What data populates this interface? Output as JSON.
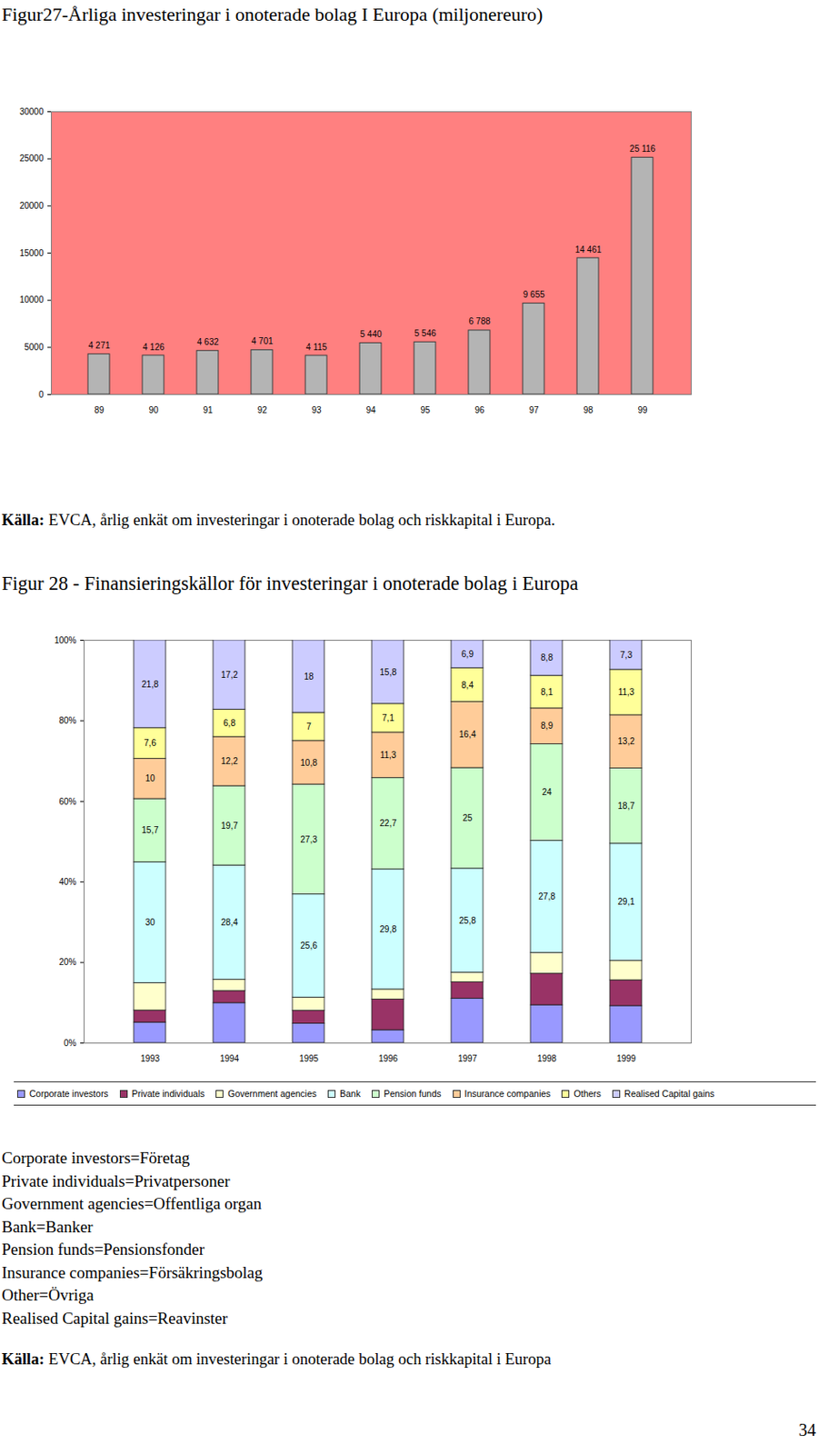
{
  "chart_data": [
    {
      "type": "bar",
      "title": "Figur27-Årliga investeringar i onoterade bolag I Europa (miljonereuro)",
      "categories": [
        "89",
        "90",
        "91",
        "92",
        "93",
        "94",
        "95",
        "96",
        "97",
        "98",
        "99"
      ],
      "values": [
        4271,
        4126,
        4632,
        4701,
        4115,
        5440,
        5546,
        6788,
        9655,
        14461,
        25116
      ],
      "value_labels": [
        "4 271",
        "4 126",
        "4 632",
        "4 701",
        "4 115",
        "5 440",
        "5 546",
        "6 788",
        "9 655",
        "14 461",
        "25 116"
      ],
      "data_labels": true,
      "color": "#b4b4b4",
      "ylim": [
        0,
        30000
      ],
      "yticks": [
        0,
        5000,
        10000,
        15000,
        20000,
        25000,
        30000
      ],
      "grid": false
    },
    {
      "type": "bar",
      "title": "Figur 28 - Finansieringskällor för investeringar i onoterade bolag i Europa",
      "stacked": true,
      "categories": [
        "1993",
        "1994",
        "1995",
        "1996",
        "1997",
        "1998",
        "1999"
      ],
      "ylim": [
        0,
        100
      ],
      "yticks": [
        {
          "value": 0,
          "label": "0%"
        },
        {
          "value": 20,
          "label": "20%"
        },
        {
          "value": 40,
          "label": "40%"
        },
        {
          "value": 60,
          "label": "60%"
        },
        {
          "value": 80,
          "label": "80%"
        },
        {
          "value": 100,
          "label": "100%"
        }
      ],
      "grid": false,
      "legend": "bottom",
      "series": [
        {
          "name": "Corporate investors",
          "color": "#9999ff",
          "data_labels": false,
          "values": [
            5.1,
            9.9,
            4.8,
            3.2,
            11.0,
            9.4,
            9.2
          ]
        },
        {
          "name": "Private individuals",
          "color": "#993366",
          "data_labels": false,
          "values": [
            3.0,
            3.0,
            3.2,
            7.6,
            4.1,
            7.8,
            6.4
          ]
        },
        {
          "name": "Government agencies",
          "color": "#ffffcc",
          "data_labels": false,
          "values": [
            6.8,
            2.8,
            3.3,
            2.5,
            2.4,
            5.2,
            4.8
          ]
        },
        {
          "name": "Bank",
          "color": "#ccffff",
          "data_labels": true,
          "values": [
            30,
            28.4,
            25.6,
            29.8,
            25.8,
            27.8,
            29.1
          ],
          "value_labels": [
            "30",
            "28,4",
            "25,6",
            "29,8",
            "25,8",
            "27,8",
            "29,1"
          ]
        },
        {
          "name": "Pension funds",
          "color": "#ccffcc",
          "data_labels": true,
          "values": [
            15.7,
            19.7,
            27.3,
            22.7,
            25,
            24,
            18.7
          ],
          "value_labels": [
            "15,7",
            "19,7",
            "27,3",
            "22,7",
            "25",
            "24",
            "18,7"
          ]
        },
        {
          "name": "Insurance  companies",
          "color": "#ffcc99",
          "data_labels": true,
          "values": [
            10,
            12.2,
            10.8,
            11.3,
            16.4,
            8.9,
            13.2
          ],
          "value_labels": [
            "10",
            "12,2",
            "10,8",
            "11,3",
            "16,4",
            "8,9",
            "13,2"
          ]
        },
        {
          "name": "Others",
          "color": "#ffff99",
          "data_labels": true,
          "values": [
            7.6,
            6.8,
            7,
            7.1,
            8.4,
            8.1,
            11.3
          ],
          "value_labels": [
            "7,6",
            "6,8",
            "7",
            "7,1",
            "8,4",
            "8,1",
            "11,3"
          ]
        },
        {
          "name": "Realised Capital gains",
          "color": "#ccccff",
          "data_labels": true,
          "values": [
            21.8,
            17.2,
            18,
            15.8,
            6.9,
            8.8,
            7.3
          ],
          "value_labels": [
            "21,8",
            "17,2",
            "18",
            "15,8",
            "6,9",
            "8,8",
            "7,3"
          ]
        }
      ]
    }
  ],
  "sources": [
    {
      "label": "Källa:",
      "text": "EVCA, årlig enkät om investeringar i onoterade bolag och riskkapital i Europa."
    },
    {
      "label": "Källa:",
      "text": "EVCA, årlig enkät om investeringar i onoterade bolag och riskkapital i Europa"
    }
  ],
  "glossary": [
    "Corporate investors=Företag",
    "Private individuals=Privatpersoner",
    "Government agencies=Offentliga organ",
    "Bank=Banker",
    "Pension funds=Pensionsfonder",
    "Insurance companies=Försäkringsbolag",
    "Other=Övriga",
    "Realised Capital gains=Reavinster"
  ],
  "page_number": 34
}
